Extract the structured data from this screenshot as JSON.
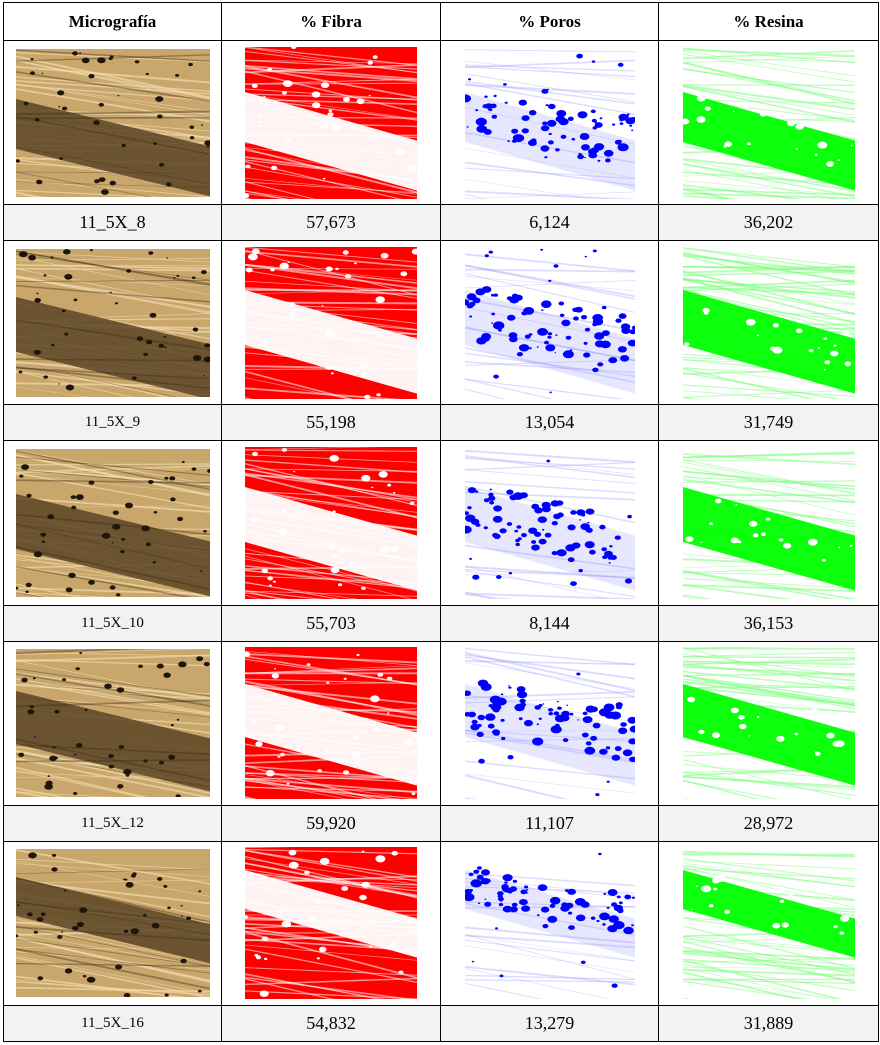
{
  "headers": {
    "micrografia": "Micrografía",
    "fibra": "% Fibra",
    "poros": "% Poros",
    "resina": "% Resina"
  },
  "rows": [
    {
      "name": "11_5X_8",
      "fibra": "57,673",
      "poros": "6,124",
      "resina": "36,202"
    },
    {
      "name": "11_5X_9",
      "fibra": "55,198",
      "poros": "13,054",
      "resina": "31,749"
    },
    {
      "name": "11_5X_10",
      "fibra": "55,703",
      "poros": "8,144",
      "resina": "36,153"
    },
    {
      "name": "11_5X_12",
      "fibra": "59,920",
      "poros": "11,107",
      "resina": "28,972"
    },
    {
      "name": "11_5X_16",
      "fibra": "54,832",
      "poros": "13,279",
      "resina": "31,889"
    }
  ],
  "colors": {
    "fibra": "#ff0000",
    "poros": "#0000ff",
    "resina": "#00ff00",
    "micro_light": "#c9a66b",
    "micro_dark": "#5a4426",
    "label_bg": "#f2f2f2"
  }
}
